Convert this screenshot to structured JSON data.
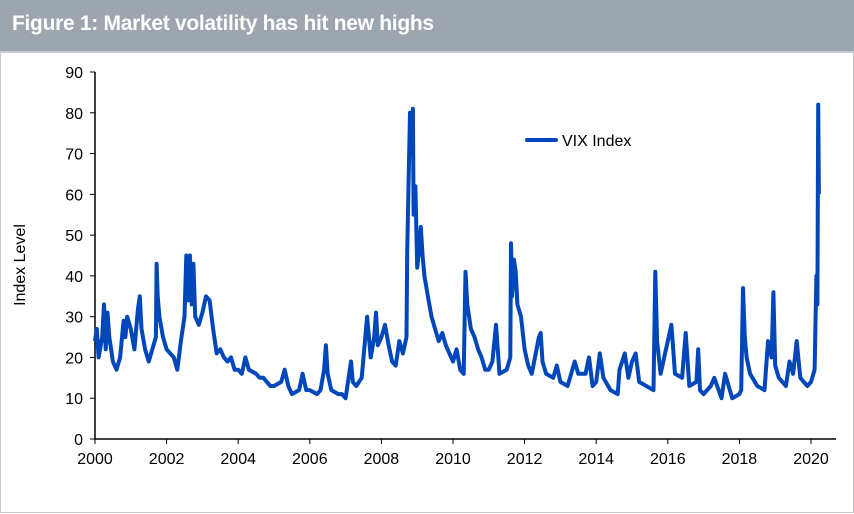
{
  "header": {
    "title": "Figure 1: Market volatility has hit new highs"
  },
  "chart_data": {
    "type": "line",
    "title": "Figure 1: Market volatility has hit new highs",
    "xlabel": "",
    "ylabel": "Index Level",
    "xlim": [
      2000,
      2020.25
    ],
    "ylim": [
      0,
      90
    ],
    "xticks": [
      2000,
      2002,
      2004,
      2006,
      2008,
      2010,
      2012,
      2014,
      2016,
      2018,
      2020
    ],
    "yticks": [
      0,
      10,
      20,
      30,
      40,
      50,
      60,
      70,
      80,
      90
    ],
    "grid": false,
    "legend": "top-right",
    "series": [
      {
        "name": "VIX Index",
        "color": "#0047bb",
        "points": [
          [
            2000.0,
            24
          ],
          [
            2000.05,
            27
          ],
          [
            2000.1,
            20
          ],
          [
            2000.2,
            25
          ],
          [
            2000.25,
            33
          ],
          [
            2000.3,
            22
          ],
          [
            2000.35,
            31
          ],
          [
            2000.4,
            25
          ],
          [
            2000.5,
            19
          ],
          [
            2000.6,
            17
          ],
          [
            2000.7,
            20
          ],
          [
            2000.8,
            29
          ],
          [
            2000.85,
            25
          ],
          [
            2000.9,
            30
          ],
          [
            2001.0,
            27
          ],
          [
            2001.1,
            22
          ],
          [
            2001.2,
            32
          ],
          [
            2001.25,
            35
          ],
          [
            2001.3,
            27
          ],
          [
            2001.4,
            22
          ],
          [
            2001.5,
            19
          ],
          [
            2001.6,
            22
          ],
          [
            2001.7,
            25
          ],
          [
            2001.72,
            43
          ],
          [
            2001.75,
            35
          ],
          [
            2001.8,
            30
          ],
          [
            2001.9,
            25
          ],
          [
            2002.0,
            22
          ],
          [
            2002.1,
            21
          ],
          [
            2002.2,
            20
          ],
          [
            2002.3,
            17
          ],
          [
            2002.4,
            24
          ],
          [
            2002.5,
            30
          ],
          [
            2002.55,
            45
          ],
          [
            2002.6,
            34
          ],
          [
            2002.65,
            45
          ],
          [
            2002.7,
            33
          ],
          [
            2002.75,
            43
          ],
          [
            2002.8,
            30
          ],
          [
            2002.9,
            28
          ],
          [
            2003.0,
            31
          ],
          [
            2003.1,
            35
          ],
          [
            2003.2,
            34
          ],
          [
            2003.3,
            27
          ],
          [
            2003.4,
            21
          ],
          [
            2003.5,
            22
          ],
          [
            2003.6,
            20
          ],
          [
            2003.7,
            19
          ],
          [
            2003.8,
            20
          ],
          [
            2003.9,
            17
          ],
          [
            2004.0,
            17
          ],
          [
            2004.1,
            16
          ],
          [
            2004.2,
            20
          ],
          [
            2004.3,
            17
          ],
          [
            2004.5,
            16
          ],
          [
            2004.6,
            15
          ],
          [
            2004.7,
            15
          ],
          [
            2004.8,
            14
          ],
          [
            2004.9,
            13
          ],
          [
            2005.0,
            13
          ],
          [
            2005.2,
            14
          ],
          [
            2005.3,
            17
          ],
          [
            2005.4,
            13
          ],
          [
            2005.5,
            11
          ],
          [
            2005.7,
            12
          ],
          [
            2005.8,
            16
          ],
          [
            2005.9,
            12
          ],
          [
            2006.0,
            12
          ],
          [
            2006.2,
            11
          ],
          [
            2006.3,
            12
          ],
          [
            2006.4,
            17
          ],
          [
            2006.45,
            23
          ],
          [
            2006.5,
            16
          ],
          [
            2006.6,
            12
          ],
          [
            2006.8,
            11
          ],
          [
            2006.9,
            11
          ],
          [
            2007.0,
            10
          ],
          [
            2007.15,
            19
          ],
          [
            2007.2,
            14
          ],
          [
            2007.3,
            13
          ],
          [
            2007.45,
            15
          ],
          [
            2007.55,
            25
          ],
          [
            2007.6,
            30
          ],
          [
            2007.7,
            20
          ],
          [
            2007.8,
            25
          ],
          [
            2007.85,
            31
          ],
          [
            2007.9,
            23
          ],
          [
            2008.0,
            25
          ],
          [
            2008.1,
            28
          ],
          [
            2008.2,
            23
          ],
          [
            2008.3,
            19
          ],
          [
            2008.4,
            18
          ],
          [
            2008.5,
            24
          ],
          [
            2008.6,
            21
          ],
          [
            2008.7,
            25
          ],
          [
            2008.72,
            46
          ],
          [
            2008.8,
            80
          ],
          [
            2008.85,
            70
          ],
          [
            2008.88,
            81
          ],
          [
            2008.9,
            55
          ],
          [
            2008.95,
            62
          ],
          [
            2009.0,
            42
          ],
          [
            2009.05,
            46
          ],
          [
            2009.1,
            52
          ],
          [
            2009.15,
            45
          ],
          [
            2009.2,
            40
          ],
          [
            2009.3,
            35
          ],
          [
            2009.4,
            30
          ],
          [
            2009.5,
            27
          ],
          [
            2009.6,
            24
          ],
          [
            2009.7,
            26
          ],
          [
            2009.8,
            23
          ],
          [
            2009.9,
            21
          ],
          [
            2010.0,
            19
          ],
          [
            2010.1,
            22
          ],
          [
            2010.2,
            17
          ],
          [
            2010.3,
            16
          ],
          [
            2010.35,
            41
          ],
          [
            2010.4,
            33
          ],
          [
            2010.5,
            27
          ],
          [
            2010.6,
            25
          ],
          [
            2010.7,
            22
          ],
          [
            2010.8,
            20
          ],
          [
            2010.9,
            17
          ],
          [
            2011.0,
            17
          ],
          [
            2011.1,
            19
          ],
          [
            2011.2,
            28
          ],
          [
            2011.3,
            16
          ],
          [
            2011.5,
            17
          ],
          [
            2011.6,
            20
          ],
          [
            2011.62,
            48
          ],
          [
            2011.65,
            35
          ],
          [
            2011.7,
            44
          ],
          [
            2011.75,
            41
          ],
          [
            2011.8,
            33
          ],
          [
            2011.9,
            30
          ],
          [
            2012.0,
            22
          ],
          [
            2012.1,
            18
          ],
          [
            2012.2,
            16
          ],
          [
            2012.4,
            25
          ],
          [
            2012.45,
            26
          ],
          [
            2012.5,
            19
          ],
          [
            2012.6,
            16
          ],
          [
            2012.8,
            15
          ],
          [
            2012.9,
            18
          ],
          [
            2013.0,
            14
          ],
          [
            2013.2,
            13
          ],
          [
            2013.4,
            19
          ],
          [
            2013.5,
            16
          ],
          [
            2013.7,
            16
          ],
          [
            2013.8,
            20
          ],
          [
            2013.9,
            13
          ],
          [
            2014.0,
            14
          ],
          [
            2014.1,
            21
          ],
          [
            2014.2,
            15
          ],
          [
            2014.4,
            12
          ],
          [
            2014.6,
            11
          ],
          [
            2014.65,
            17
          ],
          [
            2014.8,
            21
          ],
          [
            2014.9,
            15
          ],
          [
            2015.0,
            19
          ],
          [
            2015.1,
            21
          ],
          [
            2015.2,
            14
          ],
          [
            2015.4,
            13
          ],
          [
            2015.6,
            12
          ],
          [
            2015.65,
            41
          ],
          [
            2015.7,
            24
          ],
          [
            2015.8,
            16
          ],
          [
            2015.9,
            20
          ],
          [
            2016.0,
            24
          ],
          [
            2016.1,
            28
          ],
          [
            2016.2,
            16
          ],
          [
            2016.4,
            15
          ],
          [
            2016.5,
            26
          ],
          [
            2016.6,
            13
          ],
          [
            2016.8,
            14
          ],
          [
            2016.85,
            22
          ],
          [
            2016.9,
            12
          ],
          [
            2017.0,
            11
          ],
          [
            2017.2,
            13
          ],
          [
            2017.3,
            15
          ],
          [
            2017.5,
            10
          ],
          [
            2017.6,
            16
          ],
          [
            2017.8,
            10
          ],
          [
            2018.0,
            11
          ],
          [
            2018.05,
            12
          ],
          [
            2018.1,
            37
          ],
          [
            2018.15,
            25
          ],
          [
            2018.2,
            20
          ],
          [
            2018.3,
            16
          ],
          [
            2018.5,
            13
          ],
          [
            2018.7,
            12
          ],
          [
            2018.8,
            24
          ],
          [
            2018.9,
            20
          ],
          [
            2018.95,
            36
          ],
          [
            2019.0,
            18
          ],
          [
            2019.1,
            15
          ],
          [
            2019.3,
            13
          ],
          [
            2019.4,
            19
          ],
          [
            2019.5,
            16
          ],
          [
            2019.6,
            24
          ],
          [
            2019.7,
            15
          ],
          [
            2019.8,
            14
          ],
          [
            2019.9,
            13
          ],
          [
            2020.0,
            14
          ],
          [
            2020.1,
            17
          ],
          [
            2020.15,
            40
          ],
          [
            2020.18,
            33
          ],
          [
            2020.2,
            82
          ],
          [
            2020.22,
            60
          ]
        ]
      }
    ]
  }
}
